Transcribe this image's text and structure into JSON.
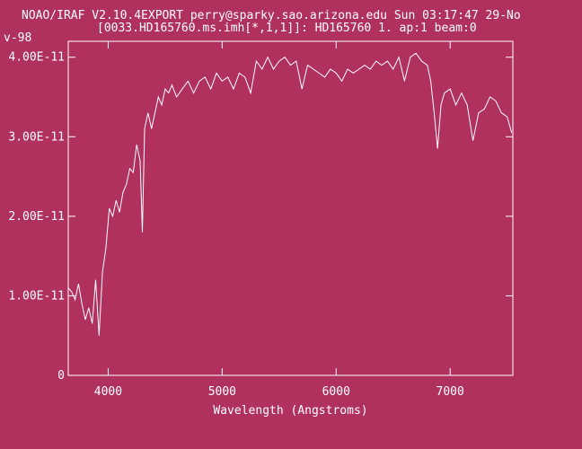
{
  "header": {
    "line1": "NOAO/IRAF V2.10.4EXPORT perry@sparky.sao.arizona.edu Sun 03:17:47 29-No",
    "line2": "[0033.HD165760.ms.imh[*,1,1]]: HD165760 1. ap:1 beam:0",
    "corner_label": "v-98"
  },
  "colors": {
    "background": "#b0305e",
    "foreground": "#ffffff"
  },
  "chart_data": {
    "type": "line",
    "title": "[0033.HD165760.ms.imh[*,1,1]]: HD165760 1. ap:1 beam:0",
    "xlabel": "Wavelength (Angstroms)",
    "ylabel": "",
    "xlim": [
      3650,
      7550
    ],
    "ylim": [
      0,
      4.2e-11
    ],
    "x_ticks": [
      4000,
      5000,
      6000,
      7000
    ],
    "x_tick_labels": [
      "4000",
      "5000",
      "6000",
      "7000"
    ],
    "y_ticks": [
      0,
      1e-11,
      2e-11,
      3e-11,
      4e-11
    ],
    "y_tick_labels": [
      "0",
      "1.00E-11",
      "2.00E-11",
      "3.00E-11",
      "4.00E-11"
    ],
    "grid": false,
    "series": [
      {
        "x": [
          3650,
          3680,
          3710,
          3740,
          3770,
          3800,
          3830,
          3860,
          3890,
          3920,
          3950,
          3980,
          4010,
          4040,
          4070,
          4100,
          4130,
          4160,
          4190,
          4220,
          4250,
          4280,
          4300,
          4320,
          4350,
          4380,
          4410,
          4440,
          4470,
          4500,
          4530,
          4560,
          4600,
          4650,
          4700,
          4750,
          4800,
          4850,
          4900,
          4950,
          5000,
          5050,
          5100,
          5150,
          5200,
          5250,
          5300,
          5350,
          5400,
          5450,
          5500,
          5550,
          5600,
          5650,
          5700,
          5750,
          5800,
          5850,
          5900,
          5950,
          6000,
          6050,
          6100,
          6150,
          6200,
          6250,
          6300,
          6350,
          6400,
          6450,
          6500,
          6550,
          6600,
          6650,
          6700,
          6750,
          6800,
          6830,
          6860,
          6890,
          6920,
          6950,
          7000,
          7050,
          7100,
          7150,
          7200,
          7250,
          7300,
          7350,
          7400,
          7450,
          7500,
          7540
        ],
        "y": [
          1.1e-11,
          1.05e-11,
          9.5e-12,
          1.15e-11,
          9e-12,
          7e-12,
          8.5e-12,
          6.5e-12,
          1.2e-11,
          5e-12,
          1.3e-11,
          1.6e-11,
          2.1e-11,
          2e-11,
          2.2e-11,
          2.05e-11,
          2.3e-11,
          2.4e-11,
          2.6e-11,
          2.55e-11,
          2.9e-11,
          2.7e-11,
          1.8e-11,
          3.1e-11,
          3.3e-11,
          3.1e-11,
          3.3e-11,
          3.5e-11,
          3.4e-11,
          3.6e-11,
          3.55e-11,
          3.65e-11,
          3.5e-11,
          3.6e-11,
          3.7e-11,
          3.55e-11,
          3.7e-11,
          3.75e-11,
          3.6e-11,
          3.8e-11,
          3.7e-11,
          3.75e-11,
          3.6e-11,
          3.8e-11,
          3.75e-11,
          3.55e-11,
          3.95e-11,
          3.85e-11,
          4e-11,
          3.85e-11,
          3.95e-11,
          4e-11,
          3.9e-11,
          3.95e-11,
          3.6e-11,
          3.9e-11,
          3.85e-11,
          3.8e-11,
          3.75e-11,
          3.85e-11,
          3.8e-11,
          3.7e-11,
          3.85e-11,
          3.8e-11,
          3.85e-11,
          3.9e-11,
          3.85e-11,
          3.95e-11,
          3.9e-11,
          3.95e-11,
          3.85e-11,
          4e-11,
          3.7e-11,
          4e-11,
          4.05e-11,
          3.95e-11,
          3.9e-11,
          3.7e-11,
          3.3e-11,
          2.85e-11,
          3.4e-11,
          3.55e-11,
          3.6e-11,
          3.4e-11,
          3.55e-11,
          3.4e-11,
          2.95e-11,
          3.3e-11,
          3.35e-11,
          3.5e-11,
          3.45e-11,
          3.3e-11,
          3.25e-11,
          3.05e-11
        ]
      }
    ]
  }
}
